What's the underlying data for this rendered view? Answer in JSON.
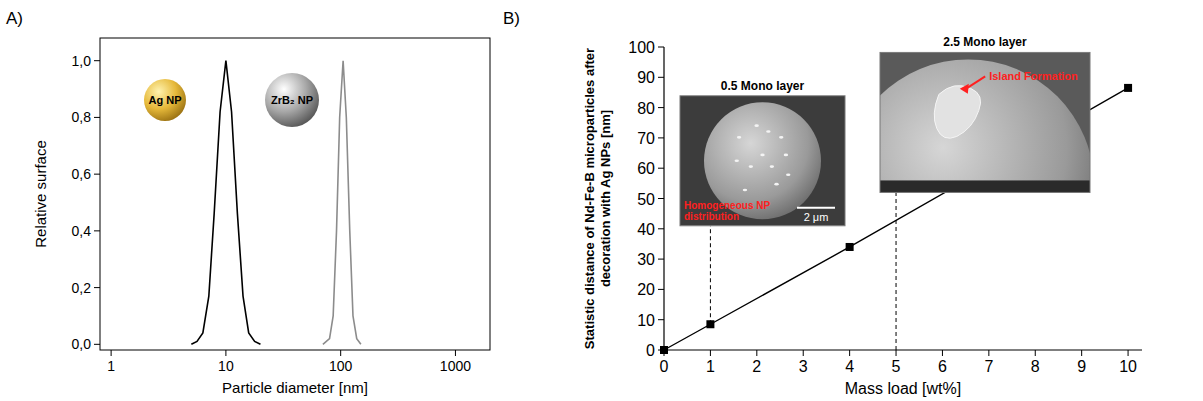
{
  "chart_data": [
    {
      "type": "line",
      "panel_label": "A)",
      "x_label": "Particle diameter [nm]",
      "y_label": "Relative surface",
      "log": "x",
      "xlim": [
        0.8,
        2000
      ],
      "xticks": [
        1,
        10,
        100,
        1000
      ],
      "ylim": [
        -0.02,
        1.08
      ],
      "yticks": [
        {
          "value": 0,
          "label": "0,0"
        },
        {
          "value": 0.2,
          "label": "0,2"
        },
        {
          "value": 0.4,
          "label": "0,4"
        },
        {
          "value": 0.6,
          "label": "0,6"
        },
        {
          "value": 0.8,
          "label": "0,8"
        },
        {
          "value": 1,
          "label": "1,0"
        }
      ],
      "series": [
        {
          "name": "Ag NP",
          "color": "#000000",
          "x": [
            5,
            5.6,
            6.3,
            7.1,
            7.9,
            8.9,
            10,
            11.2,
            12.6,
            14.1,
            15.8,
            17.8,
            20
          ],
          "values": [
            0,
            0.01,
            0.04,
            0.17,
            0.46,
            0.82,
            1,
            0.82,
            0.46,
            0.17,
            0.04,
            0.01,
            0
          ]
        },
        {
          "name": "ZrB₂ NP",
          "color": "#8c8c8c",
          "x": [
            70,
            80,
            86,
            92,
            98,
            105,
            112,
            120,
            128,
            138,
            150
          ],
          "values": [
            0,
            0.02,
            0.1,
            0.4,
            0.8,
            1,
            0.8,
            0.4,
            0.1,
            0.02,
            0
          ]
        }
      ]
    },
    {
      "type": "line",
      "panel_label": "B)",
      "x_label": "Mass load [wt%]",
      "y_label": "Statistic distance of Nd-Fe-B microparticles after decoration with Ag NPs [nm]",
      "xlim": [
        0,
        10.3
      ],
      "xticks": [
        0,
        1,
        2,
        3,
        4,
        5,
        6,
        7,
        8,
        9,
        10
      ],
      "ylim": [
        0,
        100
      ],
      "yticks": [
        0,
        10,
        20,
        30,
        40,
        50,
        60,
        70,
        80,
        90,
        100
      ],
      "series": [
        {
          "color": "#000000",
          "marker": "square",
          "x": [
            0,
            1,
            4,
            10
          ],
          "values": [
            0,
            8.5,
            34,
            86.5
          ]
        }
      ],
      "annotations": [
        {
          "text": "0.5 Mono layer",
          "x": 1,
          "y_from": 8.5,
          "y_to": 41,
          "caption": "Homogeneous NP distribution",
          "scale_bar": "2 μm"
        },
        {
          "text": "2.5 Mono layer",
          "x": 5,
          "y_from": 0,
          "y_to": 52,
          "caption": "Island Formation"
        }
      ]
    }
  ]
}
